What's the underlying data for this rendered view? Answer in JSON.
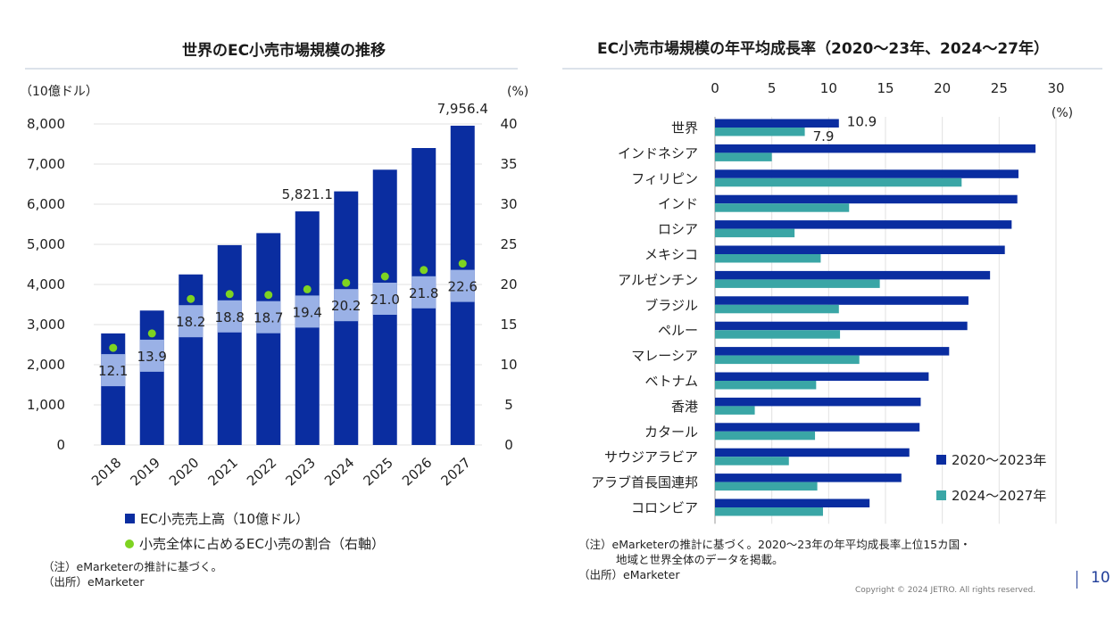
{
  "colors": {
    "main": "#0a2da0",
    "light": "#9ab1e6",
    "teal": "#3aa6a6",
    "green": "#7ed321"
  },
  "chart_data": [
    {
      "type": "bar",
      "title": "世界のEC小売市場規模の推移",
      "left_unit": "（10億ドル）",
      "right_unit": "(%)",
      "categories": [
        "2018",
        "2019",
        "2020",
        "2021",
        "2022",
        "2023",
        "2024",
        "2025",
        "2026",
        "2027"
      ],
      "ylim": [
        0,
        8000
      ],
      "yticks": [
        "0",
        "1,000",
        "2,000",
        "3,000",
        "4,000",
        "5,000",
        "6,000",
        "7,000",
        "8,000"
      ],
      "y2lim": [
        0,
        40
      ],
      "y2ticks": [
        "0",
        "5",
        "10",
        "15",
        "20",
        "25",
        "30",
        "35",
        "40"
      ],
      "series": [
        {
          "name": "EC小売売上高（10億ドル）",
          "type": "bar",
          "values": [
            2780,
            3350,
            4250,
            4980,
            5280,
            5821.1,
            6320,
            6860,
            7400,
            7956.4
          ]
        },
        {
          "name": "小売全体に占めるEC小売の割合（右軸）",
          "type": "scatter",
          "values": [
            12.1,
            13.9,
            18.2,
            18.8,
            18.7,
            19.4,
            20.2,
            21.0,
            21.8,
            22.6
          ],
          "labels": [
            "12.1",
            "13.9",
            "18.2",
            "18.8",
            "18.7",
            "19.4",
            "20.2",
            "21.0",
            "21.8",
            "22.6"
          ]
        }
      ],
      "bar_value_labels": [
        {
          "index": 5,
          "text": "5,821.1"
        },
        {
          "index": 9,
          "text": "7,956.4"
        }
      ],
      "legend": "bottom"
    },
    {
      "type": "bar",
      "orientation": "horizontal",
      "title": "EC小売市場規模の年平均成長率（2020～23年、2024～27年）",
      "x_unit": "(%)",
      "xlim": [
        0,
        30
      ],
      "xticks": [
        "0",
        "5",
        "10",
        "15",
        "20",
        "25",
        "30"
      ],
      "categories": [
        "世界",
        "インドネシア",
        "フィリピン",
        "インド",
        "ロシア",
        "メキシコ",
        "アルゼンチン",
        "ブラジル",
        "ペルー",
        "マレーシア",
        "ベトナム",
        "香港",
        "カタール",
        "サウジアラビア",
        "アラブ首長国連邦",
        "コロンビア"
      ],
      "series": [
        {
          "name": "2020～2023年",
          "values": [
            10.9,
            28.2,
            26.7,
            26.6,
            26.1,
            25.5,
            24.2,
            22.3,
            22.2,
            20.6,
            18.8,
            18.1,
            18.0,
            17.1,
            16.4,
            13.6
          ]
        },
        {
          "name": "2024～2027年",
          "values": [
            7.9,
            5.0,
            21.7,
            11.8,
            7.0,
            9.3,
            14.5,
            10.9,
            11.0,
            12.7,
            8.9,
            3.5,
            8.8,
            6.5,
            9.0,
            9.5
          ]
        }
      ],
      "value_labels": [
        {
          "series": 0,
          "index": 0,
          "text": "10.9"
        },
        {
          "series": 1,
          "index": 0,
          "text": "7.9"
        }
      ],
      "legend": "bottom-right"
    }
  ],
  "notes": {
    "left_note": "（注）eMarketerの推計に基づく。",
    "left_source": "（出所）eMarketer",
    "right_note1": "（注）eMarketerの推計に基づく。2020～23年の年平均成長率上位15カ国・",
    "right_note2": "地域と世界全体のデータを掲載。",
    "right_source": "（出所）eMarketer"
  },
  "footer": {
    "copyright": "Copyright © 2024 JETRO. All rights reserved.",
    "page": "10"
  }
}
